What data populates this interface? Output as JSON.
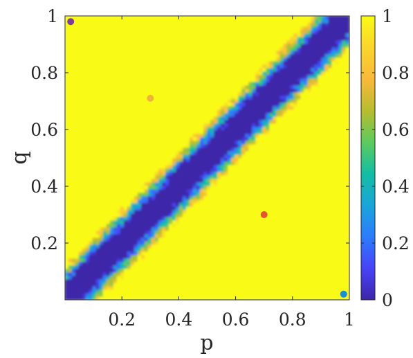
{
  "chart_data": {
    "type": "heatmap",
    "title": "",
    "xlabel": "p",
    "ylabel": "q",
    "xlim": [
      0,
      1
    ],
    "ylim": [
      0,
      1
    ],
    "x_ticks": [
      "0.2",
      "0.4",
      "0.6",
      "0.8",
      "1"
    ],
    "x_tick_values": [
      0.2,
      0.4,
      0.6,
      0.8,
      1.0
    ],
    "y_ticks": [
      "0.2",
      "0.4",
      "0.6",
      "0.8",
      "1"
    ],
    "y_tick_values": [
      0.2,
      0.4,
      0.6,
      0.8,
      1.0
    ],
    "colormap": "parula",
    "colorbar": {
      "range": [
        0,
        1
      ],
      "ticks": [
        "0",
        "0.2",
        "0.4",
        "0.6",
        "0.8",
        "1"
      ],
      "tick_values": [
        0,
        0.2,
        0.4,
        0.6,
        0.8,
        1.0
      ],
      "stops": [
        "#3e26a8",
        "#4743f8",
        "#2c7cfd",
        "#1aa5da",
        "#13bea3",
        "#5ecb5e",
        "#b7bc2f",
        "#f9b93b",
        "#f9d52d",
        "#f9fb15"
      ]
    },
    "field": {
      "description_values": "value is ~0 along the diagonal q = p and rises to 1 away from it",
      "diagonal_value": 0.0,
      "far_value": 1.0,
      "band_half_width_in_q_minus_p": 0.09
    },
    "points": [
      {
        "p": 0.02,
        "q": 0.98,
        "value": 0.05,
        "color": "#7b3f98"
      },
      {
        "p": 0.3,
        "q": 0.71,
        "value": 0.88,
        "color": "#f0b23c"
      },
      {
        "p": 0.7,
        "q": 0.3,
        "value": 0.78,
        "color": "#e5532f"
      },
      {
        "p": 0.98,
        "q": 0.02,
        "value": 0.4,
        "color": "#1a8fd0"
      }
    ]
  }
}
